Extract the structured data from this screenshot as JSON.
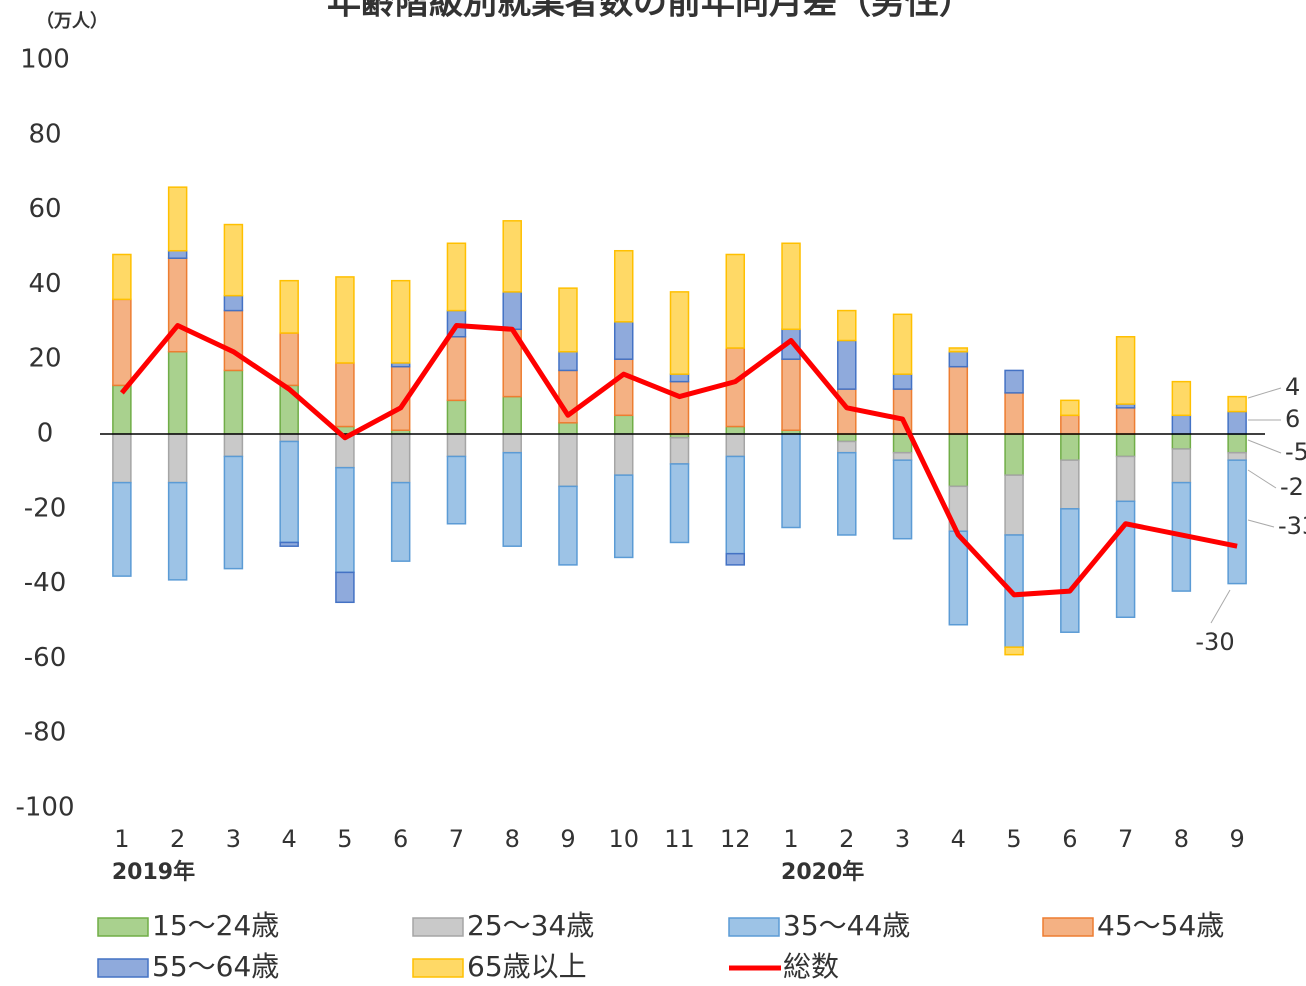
{
  "chart_data": {
    "type": "bar",
    "stacked": true,
    "title": "年齢階級別就業者数の前年同月差（男性）",
    "y_unit": "（万人）",
    "categories": [
      "1",
      "2",
      "3",
      "4",
      "5",
      "6",
      "7",
      "8",
      "9",
      "10",
      "11",
      "12",
      "1",
      "2",
      "3",
      "4",
      "5",
      "6",
      "7",
      "8",
      "9"
    ],
    "year_groups": [
      {
        "label": "2019年",
        "size": 12
      },
      {
        "label": "2020年",
        "size": 9
      }
    ],
    "ylim": [
      -100,
      100
    ],
    "yticks": [
      -100,
      -80,
      -60,
      -40,
      -20,
      0,
      20,
      40,
      60,
      80,
      100
    ],
    "grid": false,
    "series": [
      {
        "name": "15〜24歳",
        "color": "#a9d18e",
        "edge_color": "#70ad47",
        "values": [
          13,
          22,
          17,
          13,
          2,
          1,
          9,
          10,
          3,
          5,
          -1,
          2,
          1,
          -2,
          -5,
          -14,
          -11,
          -7,
          -6,
          -4,
          -5
        ]
      },
      {
        "name": "25〜34歳",
        "color": "#c9c9c9",
        "edge_color": "#a5a5a5",
        "values": [
          -13,
          -13,
          -6,
          -2,
          -9,
          -13,
          -6,
          -5,
          -14,
          -11,
          -7,
          -6,
          0,
          -3,
          -2,
          -12,
          -16,
          -13,
          -12,
          -9,
          -2
        ]
      },
      {
        "name": "35〜44歳",
        "color": "#9dc3e6",
        "edge_color": "#5b9bd5",
        "values": [
          -25,
          -26,
          -30,
          -27,
          -28,
          -21,
          -18,
          -25,
          -21,
          -22,
          -21,
          -26,
          -25,
          -22,
          -21,
          -25,
          -30,
          -33,
          -31,
          -29,
          -33
        ]
      },
      {
        "name": "45〜54歳",
        "color": "#f4b183",
        "edge_color": "#ed7d31",
        "values": [
          23,
          25,
          16,
          14,
          17,
          17,
          17,
          18,
          14,
          15,
          14,
          21,
          19,
          12,
          12,
          18,
          11,
          5,
          7,
          0,
          0
        ]
      },
      {
        "name": "55〜64歳",
        "color": "#8faadc",
        "edge_color": "#4472c4",
        "values": [
          0,
          2,
          4,
          -1,
          -8,
          1,
          7,
          10,
          5,
          10,
          2,
          -3,
          8,
          13,
          4,
          4,
          6,
          0,
          1,
          5,
          6
        ]
      },
      {
        "name": "65歳以上",
        "color": "#ffd966",
        "edge_color": "#ffc000",
        "values": [
          12,
          17,
          19,
          14,
          23,
          22,
          18,
          19,
          17,
          19,
          22,
          25,
          23,
          8,
          16,
          1,
          -2,
          4,
          18,
          9,
          4
        ]
      },
      {
        "name": "総数",
        "type": "line",
        "color": "#ff0000",
        "values": [
          11,
          29,
          22,
          12,
          -1,
          7,
          29,
          28,
          5,
          16,
          10,
          14,
          25,
          7,
          4,
          -27,
          -43,
          -42,
          -24,
          -27,
          -30
        ]
      }
    ]
  }
}
